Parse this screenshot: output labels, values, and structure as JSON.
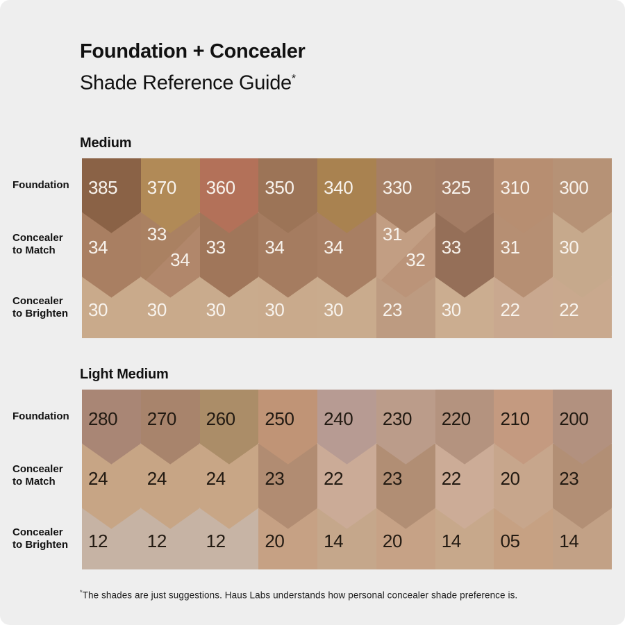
{
  "title": {
    "line1": "Foundation + Concealer",
    "line2": "Shade Reference Guide",
    "asterisk": "*"
  },
  "footnote": {
    "asterisk": "*",
    "text": "The shades are just suggestions. Haus Labs understands how personal concealer shade preference is."
  },
  "colors": {
    "background": "#eeeeee",
    "heading_text": "#111111"
  },
  "sections": [
    {
      "id": "medium",
      "heading": "Medium",
      "number_color": "#f8f3ed",
      "rows": [
        {
          "key": "foundation",
          "label_lines": [
            "Foundation"
          ],
          "cells": [
            {
              "labels": [
                "385"
              ],
              "colors": [
                "#8a6246"
              ]
            },
            {
              "labels": [
                "370"
              ],
              "colors": [
                "#b18a57"
              ]
            },
            {
              "labels": [
                "360"
              ],
              "colors": [
                "#b37159"
              ]
            },
            {
              "labels": [
                "350"
              ],
              "colors": [
                "#9c7457"
              ]
            },
            {
              "labels": [
                "340"
              ],
              "colors": [
                "#a98250"
              ]
            },
            {
              "labels": [
                "330"
              ],
              "colors": [
                "#a67f64"
              ]
            },
            {
              "labels": [
                "325"
              ],
              "colors": [
                "#a37c64"
              ]
            },
            {
              "labels": [
                "310"
              ],
              "colors": [
                "#b78e71"
              ]
            },
            {
              "labels": [
                "300"
              ],
              "colors": [
                "#b69276"
              ]
            }
          ]
        },
        {
          "key": "concealer-to-match",
          "label_lines": [
            "Concealer",
            "to Match"
          ],
          "cells": [
            {
              "labels": [
                "34"
              ],
              "colors": [
                "#a97f62"
              ]
            },
            {
              "labels": [
                "33",
                "34"
              ],
              "colors": [
                "#aa8162",
                "#b1876b"
              ]
            },
            {
              "labels": [
                "33"
              ],
              "colors": [
                "#a0765a"
              ]
            },
            {
              "labels": [
                "34"
              ],
              "colors": [
                "#a57c60"
              ]
            },
            {
              "labels": [
                "34"
              ],
              "colors": [
                "#a87f63"
              ]
            },
            {
              "labels": [
                "31",
                "32"
              ],
              "colors": [
                "#c29e83",
                "#bb9479"
              ]
            },
            {
              "labels": [
                "33"
              ],
              "colors": [
                "#956f58"
              ]
            },
            {
              "labels": [
                "31"
              ],
              "colors": [
                "#b68f73"
              ]
            },
            {
              "labels": [
                "30"
              ],
              "colors": [
                "#c6a98c"
              ]
            }
          ]
        },
        {
          "key": "concealer-to-brighten",
          "label_lines": [
            "Concealer",
            "to Brighten"
          ],
          "cells": [
            {
              "labels": [
                "30"
              ],
              "colors": [
                "#c9aa8b"
              ]
            },
            {
              "labels": [
                "30"
              ],
              "colors": [
                "#c9aa8b"
              ]
            },
            {
              "labels": [
                "30"
              ],
              "colors": [
                "#c9ab8d"
              ]
            },
            {
              "labels": [
                "30"
              ],
              "colors": [
                "#c9aa8c"
              ]
            },
            {
              "labels": [
                "30"
              ],
              "colors": [
                "#c9ab8d"
              ]
            },
            {
              "labels": [
                "23"
              ],
              "colors": [
                "#bd9b81"
              ]
            },
            {
              "labels": [
                "30"
              ],
              "colors": [
                "#cbad90"
              ]
            },
            {
              "labels": [
                "22"
              ],
              "colors": [
                "#c9a88f"
              ]
            },
            {
              "labels": [
                "22"
              ],
              "colors": [
                "#c9a98e"
              ]
            }
          ]
        }
      ]
    },
    {
      "id": "light-medium",
      "heading": "Light Medium",
      "number_color": "#221a12",
      "rows": [
        {
          "key": "foundation",
          "label_lines": [
            "Foundation"
          ],
          "cells": [
            {
              "labels": [
                "280"
              ],
              "colors": [
                "#a98675"
              ]
            },
            {
              "labels": [
                "270"
              ],
              "colors": [
                "#a8846c"
              ]
            },
            {
              "labels": [
                "260"
              ],
              "colors": [
                "#ab8d68"
              ]
            },
            {
              "labels": [
                "250"
              ],
              "colors": [
                "#c09476"
              ]
            },
            {
              "labels": [
                "240"
              ],
              "colors": [
                "#b79b93"
              ]
            },
            {
              "labels": [
                "230"
              ],
              "colors": [
                "#bb9c8a"
              ]
            },
            {
              "labels": [
                "220"
              ],
              "colors": [
                "#b4937f"
              ]
            },
            {
              "labels": [
                "210"
              ],
              "colors": [
                "#c49a80"
              ]
            },
            {
              "labels": [
                "200"
              ],
              "colors": [
                "#b2917f"
              ]
            }
          ]
        },
        {
          "key": "concealer-to-match",
          "label_lines": [
            "Concealer",
            "to Match"
          ],
          "cells": [
            {
              "labels": [
                "24"
              ],
              "colors": [
                "#c7a585"
              ]
            },
            {
              "labels": [
                "24"
              ],
              "colors": [
                "#c7a585"
              ]
            },
            {
              "labels": [
                "24"
              ],
              "colors": [
                "#c8a686"
              ]
            },
            {
              "labels": [
                "23"
              ],
              "colors": [
                "#b18c72"
              ]
            },
            {
              "labels": [
                "22"
              ],
              "colors": [
                "#cbab97"
              ]
            },
            {
              "labels": [
                "23"
              ],
              "colors": [
                "#b18e74"
              ]
            },
            {
              "labels": [
                "22"
              ],
              "colors": [
                "#ccac97"
              ]
            },
            {
              "labels": [
                "20"
              ],
              "colors": [
                "#c7a68c"
              ]
            },
            {
              "labels": [
                "23"
              ],
              "colors": [
                "#b28f75"
              ]
            }
          ]
        },
        {
          "key": "concealer-to-brighten",
          "label_lines": [
            "Concealer",
            "to Brighten"
          ],
          "cells": [
            {
              "labels": [
                "12"
              ],
              "colors": [
                "#c6b3a4"
              ]
            },
            {
              "labels": [
                "12"
              ],
              "colors": [
                "#c6b3a4"
              ]
            },
            {
              "labels": [
                "12"
              ],
              "colors": [
                "#c7b4a5"
              ]
            },
            {
              "labels": [
                "20"
              ],
              "colors": [
                "#c6a184"
              ]
            },
            {
              "labels": [
                "14"
              ],
              "colors": [
                "#c5a78b"
              ]
            },
            {
              "labels": [
                "20"
              ],
              "colors": [
                "#c6a286"
              ]
            },
            {
              "labels": [
                "14"
              ],
              "colors": [
                "#c7a88b"
              ]
            },
            {
              "labels": [
                "05"
              ],
              "colors": [
                "#c6a183"
              ]
            },
            {
              "labels": [
                "14"
              ],
              "colors": [
                "#c2a186"
              ]
            }
          ]
        }
      ]
    }
  ]
}
